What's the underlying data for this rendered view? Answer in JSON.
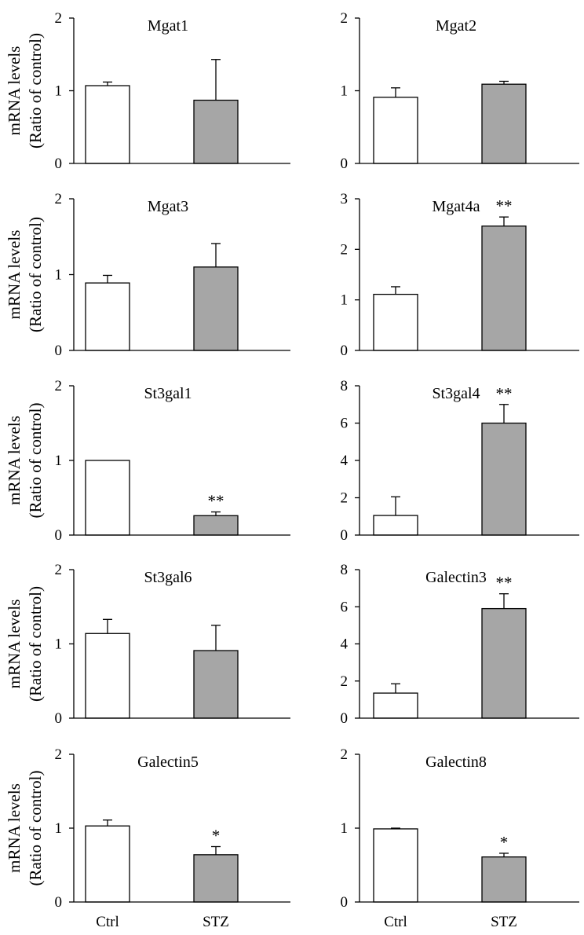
{
  "figure": {
    "ylabel_line1": "mRNA  levels",
    "ylabel_line2": "(Ratio of control)",
    "groups": [
      "Ctrl",
      "STZ"
    ],
    "colors": {
      "Ctrl": "#ffffff",
      "STZ": "#a6a6a6"
    }
  },
  "chart_data": [
    {
      "type": "bar",
      "title": "Mgat1",
      "categories": [
        "Ctrl",
        "STZ"
      ],
      "values": [
        1.07,
        0.87
      ],
      "errors": [
        0.05,
        0.56
      ],
      "significance": [
        "",
        ""
      ],
      "ylim": [
        0,
        2
      ],
      "yticks": [
        0,
        1,
        2
      ],
      "ylabel": "mRNA levels (Ratio of control)"
    },
    {
      "type": "bar",
      "title": "Mgat2",
      "categories": [
        "Ctrl",
        "STZ"
      ],
      "values": [
        0.91,
        1.09
      ],
      "errors": [
        0.13,
        0.04
      ],
      "significance": [
        "",
        ""
      ],
      "ylim": [
        0,
        2
      ],
      "yticks": [
        0,
        1,
        2
      ],
      "ylabel": ""
    },
    {
      "type": "bar",
      "title": "Mgat3",
      "categories": [
        "Ctrl",
        "STZ"
      ],
      "values": [
        0.89,
        1.1
      ],
      "errors": [
        0.1,
        0.31
      ],
      "significance": [
        "",
        ""
      ],
      "ylim": [
        0,
        2
      ],
      "yticks": [
        0,
        1,
        2
      ],
      "ylabel": "mRNA levels (Ratio of control)"
    },
    {
      "type": "bar",
      "title": "Mgat4a",
      "categories": [
        "Ctrl",
        "STZ"
      ],
      "values": [
        1.11,
        2.46
      ],
      "errors": [
        0.15,
        0.18
      ],
      "significance": [
        "",
        "**"
      ],
      "ylim": [
        0,
        3
      ],
      "yticks": [
        0,
        1,
        2,
        3
      ],
      "ylabel": ""
    },
    {
      "type": "bar",
      "title": "St3gal1",
      "categories": [
        "Ctrl",
        "STZ"
      ],
      "values": [
        1.0,
        0.26
      ],
      "errors": [
        0.0,
        0.05
      ],
      "significance": [
        "",
        "**"
      ],
      "ylim": [
        0,
        2
      ],
      "yticks": [
        0,
        1,
        2
      ],
      "ylabel": "mRNA levels (Ratio of control)"
    },
    {
      "type": "bar",
      "title": "St3gal4",
      "categories": [
        "Ctrl",
        "STZ"
      ],
      "values": [
        1.05,
        6.0
      ],
      "errors": [
        1.0,
        1.0
      ],
      "significance": [
        "",
        "**"
      ],
      "ylim": [
        0,
        8
      ],
      "yticks": [
        0,
        2,
        4,
        6,
        8
      ],
      "ylabel": ""
    },
    {
      "type": "bar",
      "title": "St3gal6",
      "categories": [
        "Ctrl",
        "STZ"
      ],
      "values": [
        1.14,
        0.91
      ],
      "errors": [
        0.19,
        0.34
      ],
      "significance": [
        "",
        ""
      ],
      "ylim": [
        0,
        2
      ],
      "yticks": [
        0,
        1,
        2
      ],
      "ylabel": "mRNA levels (Ratio of control)"
    },
    {
      "type": "bar",
      "title": "Galectin3",
      "categories": [
        "Ctrl",
        "STZ"
      ],
      "values": [
        1.35,
        5.9
      ],
      "errors": [
        0.5,
        0.8
      ],
      "significance": [
        "",
        "**"
      ],
      "ylim": [
        0,
        8
      ],
      "yticks": [
        0,
        2,
        4,
        6,
        8
      ],
      "ylabel": ""
    },
    {
      "type": "bar",
      "title": "Galectin5",
      "categories": [
        "Ctrl",
        "STZ"
      ],
      "values": [
        1.03,
        0.64
      ],
      "errors": [
        0.08,
        0.11
      ],
      "significance": [
        "",
        "*"
      ],
      "ylim": [
        0,
        2
      ],
      "yticks": [
        0,
        1,
        2
      ],
      "ylabel": "mRNA levels (Ratio of control)"
    },
    {
      "type": "bar",
      "title": "Galectin8",
      "categories": [
        "Ctrl",
        "STZ"
      ],
      "values": [
        0.99,
        0.61
      ],
      "errors": [
        0.01,
        0.05
      ],
      "significance": [
        "",
        "*"
      ],
      "ylim": [
        0,
        2
      ],
      "yticks": [
        0,
        1,
        2
      ],
      "ylabel": ""
    }
  ]
}
